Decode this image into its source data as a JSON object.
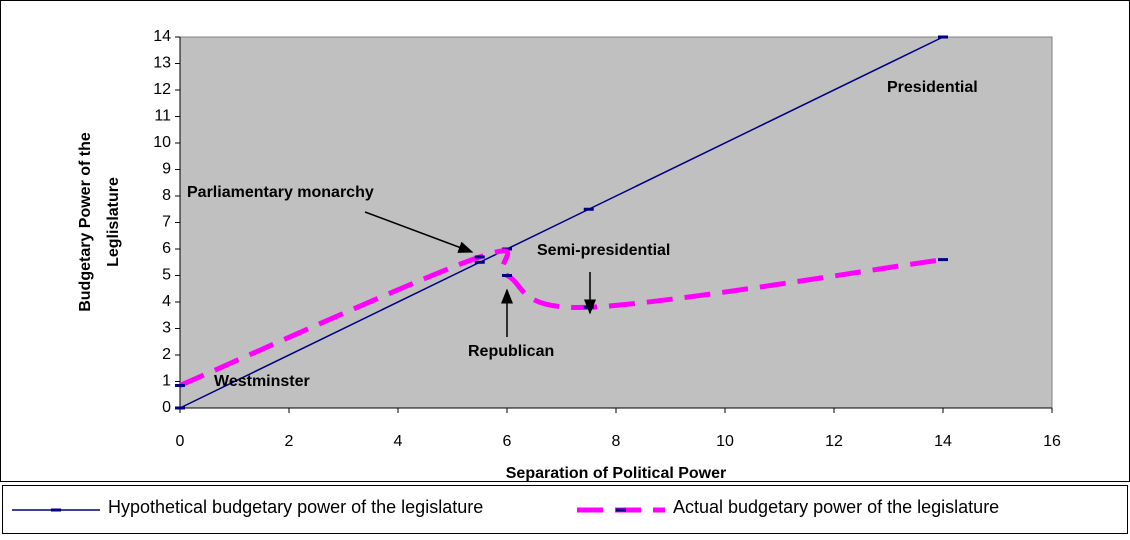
{
  "chart_data": {
    "type": "line",
    "xlabel": "Separation of Political Power",
    "ylabel": [
      "Budgetary Power of the",
      "Leglislature"
    ],
    "xlim": [
      0,
      16
    ],
    "xticks": [
      0,
      2,
      4,
      6,
      8,
      10,
      12,
      14,
      16
    ],
    "ylim": [
      0,
      14
    ],
    "yticks": [
      0,
      1,
      2,
      3,
      4,
      5,
      6,
      7,
      8,
      9,
      10,
      11,
      12,
      13,
      14
    ],
    "grid": false,
    "series": [
      {
        "name": "Hypothetical budgetary power of the legislature",
        "color": "#000080",
        "dash": false,
        "x": [
          0,
          5.5,
          6,
          7.5,
          14
        ],
        "values": [
          0,
          5.5,
          6,
          7.5,
          14
        ]
      },
      {
        "name": "Actual budgetary power of the legislature",
        "color": "#ff00ff",
        "dash": true,
        "x": [
          0,
          5.5,
          6,
          7.5,
          14
        ],
        "values": [
          0.85,
          5.7,
          5,
          3.8,
          5.6
        ]
      }
    ],
    "annotations": [
      "Presidential",
      "Parliamentary monarchy",
      "Semi-presidential",
      "Republican",
      "Westminster"
    ]
  }
}
